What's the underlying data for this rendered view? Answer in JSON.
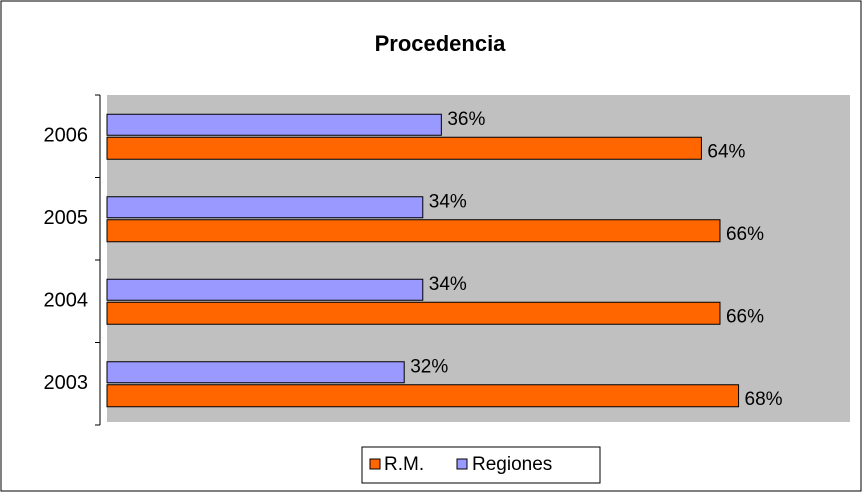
{
  "chart_data": {
    "type": "hbar",
    "title": "Procedencia",
    "categories": [
      "2006",
      "2005",
      "2004",
      "2003"
    ],
    "series": [
      {
        "name": "R.M.",
        "color": "#ff6600",
        "values": [
          64,
          66,
          66,
          68
        ],
        "value_labels": [
          "64%",
          "66%",
          "66%",
          "68%"
        ]
      },
      {
        "name": "Regiones",
        "color": "#9999ff",
        "values": [
          36,
          34,
          34,
          32
        ],
        "value_labels": [
          "36%",
          "34%",
          "34%",
          "32%"
        ]
      }
    ],
    "xlim": [
      0,
      80
    ],
    "legend": "bottom"
  }
}
